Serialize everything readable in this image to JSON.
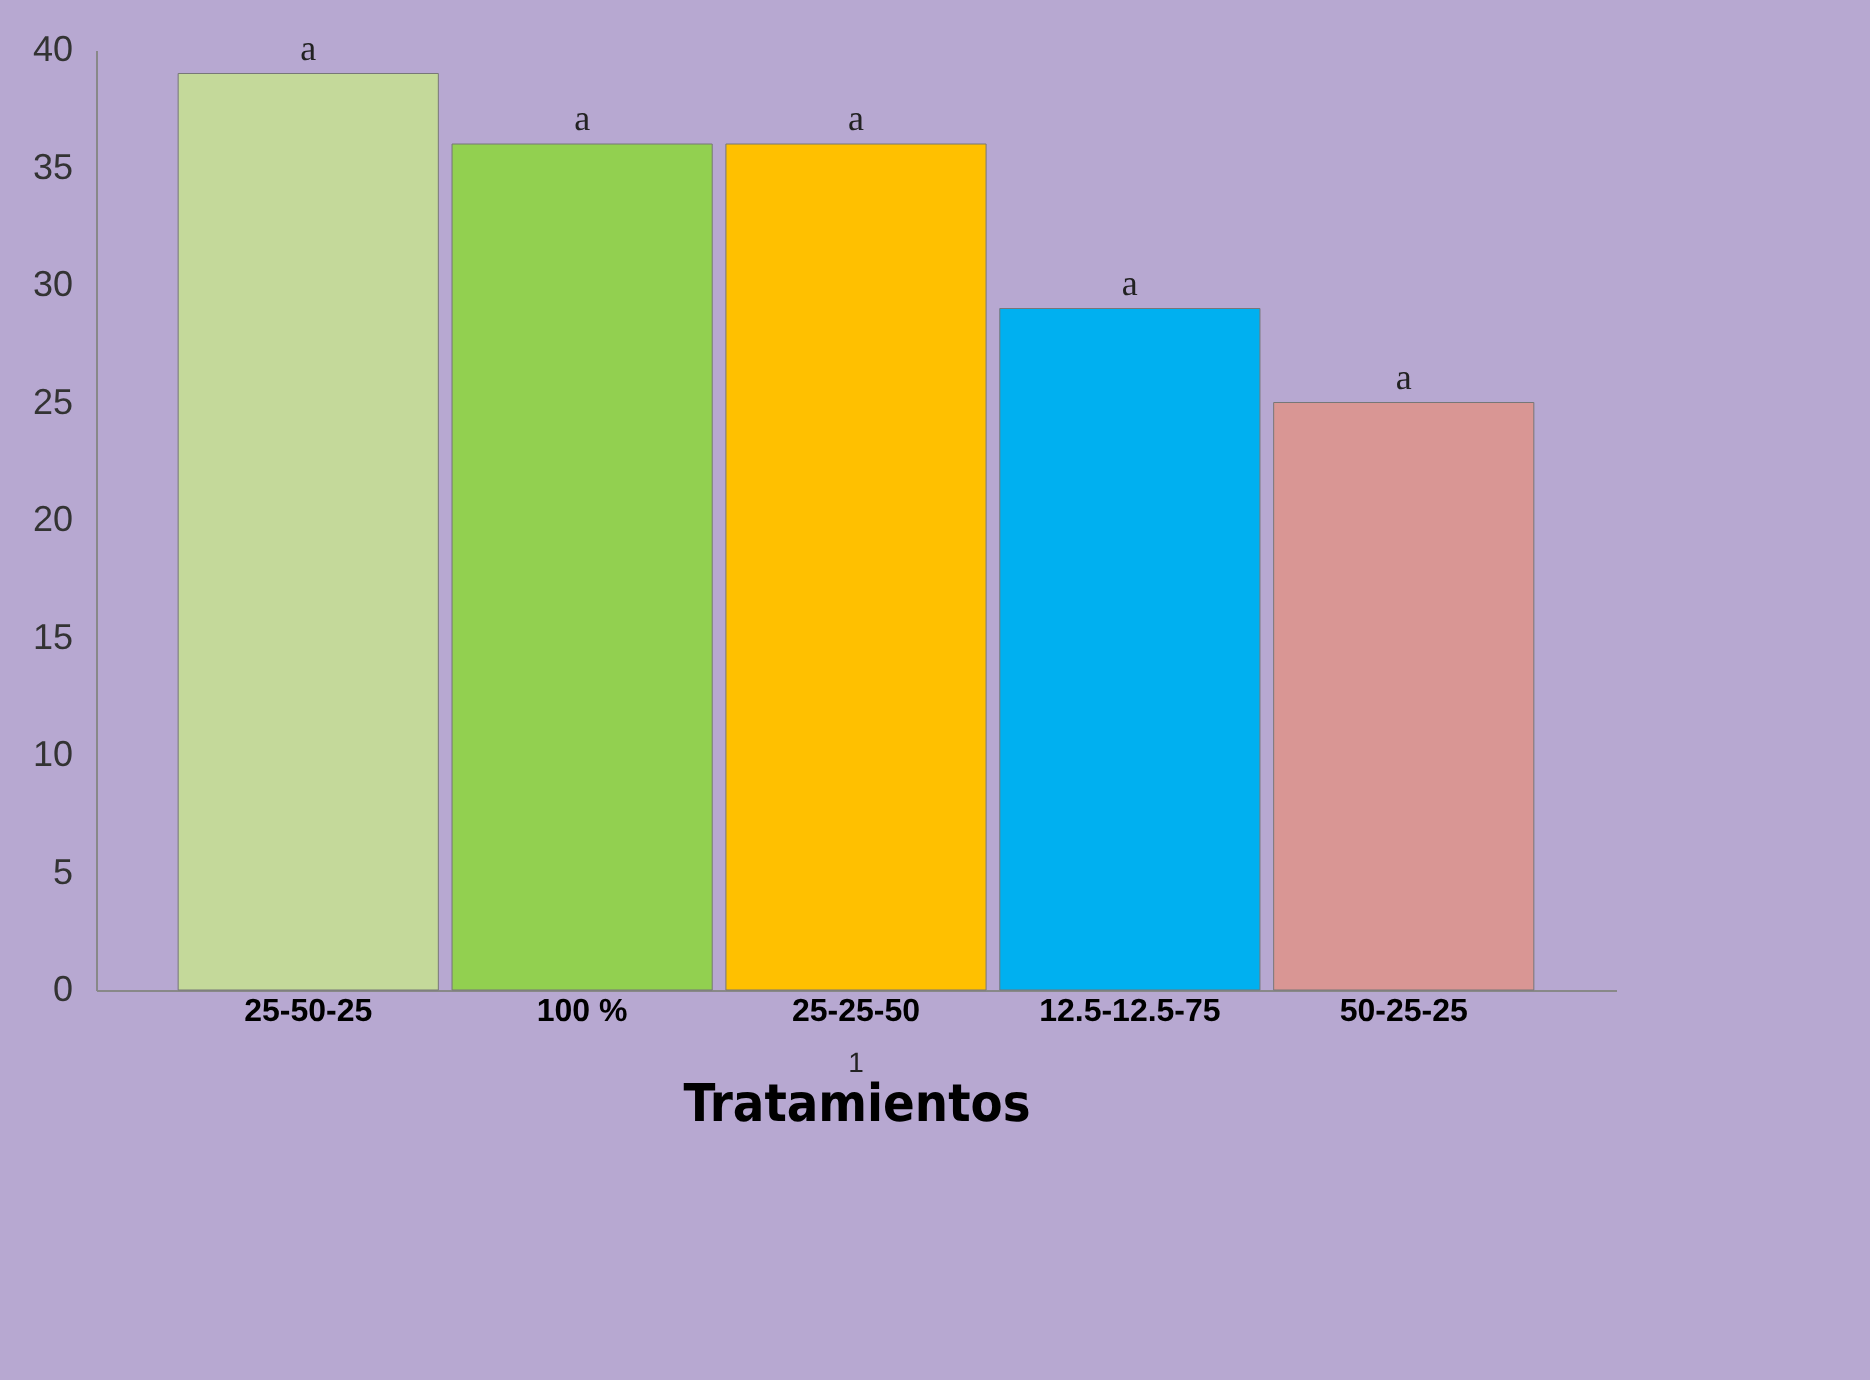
{
  "chart_data": {
    "type": "bar",
    "xlabel": "Tratamientos",
    "categories": [
      "25-50-25",
      "100 %",
      "25-25-50",
      "12.5-12.5-75",
      "50-25-25"
    ],
    "values": [
      39,
      36,
      36,
      29,
      25
    ],
    "colors": [
      "#c4d99a",
      "#92d050",
      "#ffc000",
      "#00b0f0",
      "#d99694"
    ],
    "ylim": [
      0,
      40
    ],
    "yticks": [
      0,
      5,
      10,
      15,
      20,
      25,
      30,
      35,
      40
    ],
    "grid": false,
    "annotations": [
      {
        "text": "a",
        "x": "25-50-25",
        "y": 39
      },
      {
        "text": "a",
        "x": "100 %",
        "y": 36
      },
      {
        "text": "a",
        "x": "25-25-50",
        "y": 36
      },
      {
        "text": "a",
        "x": "12.5-12.5-75",
        "y": 29
      },
      {
        "text": "a",
        "x": "50-25-25",
        "y": 25
      },
      "1"
    ]
  }
}
